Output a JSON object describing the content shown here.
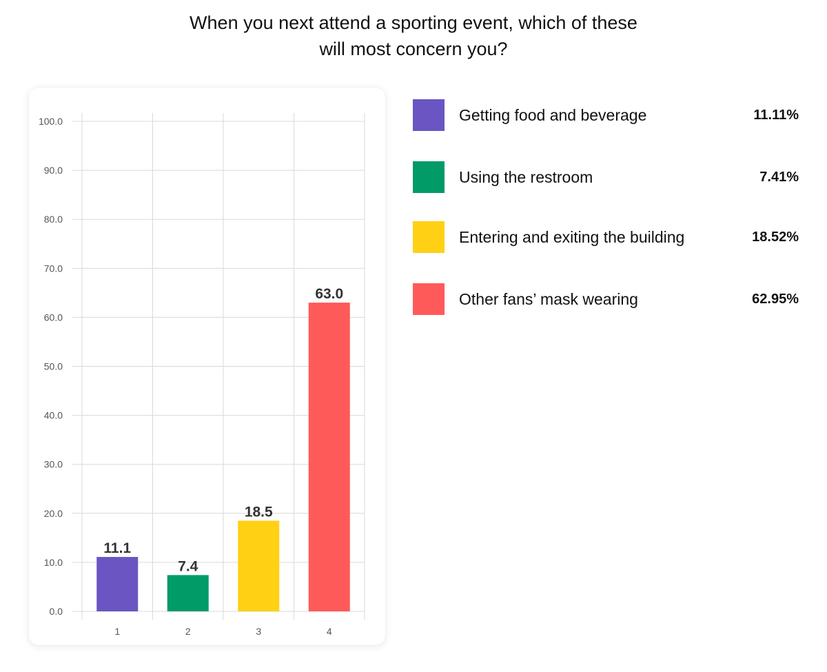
{
  "title_lines": [
    "When you next attend a sporting event, which of these",
    "will most concern you?"
  ],
  "legend": [
    {
      "label": "Getting food and beverage",
      "percent": "11.11%",
      "color": "#6A55C2"
    },
    {
      "label": "Using the restroom",
      "percent": "7.41%",
      "color": "#009B67"
    },
    {
      "label": "Entering and exiting the building",
      "percent": "18.52%",
      "color": "#FFD014"
    },
    {
      "label": "Other fans’ mask wearing",
      "percent": "62.95%",
      "color": "#FF5A5A"
    }
  ],
  "chart_data": {
    "type": "bar",
    "categories": [
      "1",
      "2",
      "3",
      "4"
    ],
    "values": [
      11.1,
      7.4,
      18.5,
      63.0
    ],
    "value_labels": [
      "11.1",
      "7.4",
      "18.5",
      "63.0"
    ],
    "colors": [
      "#6A55C2",
      "#009B67",
      "#FFD014",
      "#FF5A5A"
    ],
    "title": "When you next attend a sporting event, which of these will most concern you?",
    "xlabel": "",
    "ylabel": "",
    "ylim": [
      0,
      100
    ],
    "yticks": [
      "0.0",
      "10.0",
      "20.0",
      "30.0",
      "40.0",
      "50.0",
      "60.0",
      "70.0",
      "80.0",
      "90.0",
      "100.0"
    ],
    "grid": true,
    "legend_position": "right"
  }
}
